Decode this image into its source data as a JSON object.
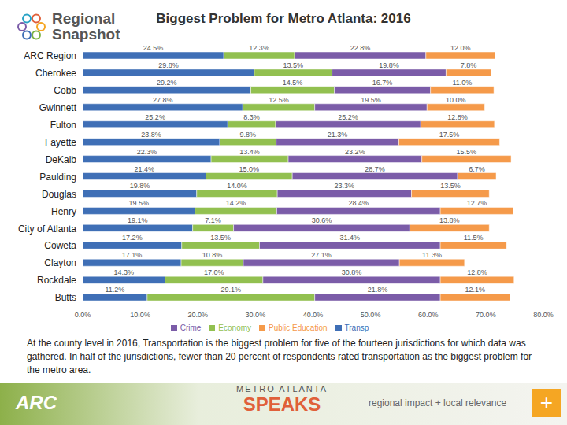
{
  "chart_data": {
    "type": "bar",
    "title": "Biggest Problem for Metro Atlanta: 2016",
    "orientation": "horizontal",
    "stacked": true,
    "data_labels": true,
    "grid": false,
    "legend": "bottom",
    "categories": [
      "ARC Region",
      "Cherokee",
      "Cobb",
      "Gwinnett",
      "Fulton",
      "Fayette",
      "DeKalb",
      "Paulding",
      "Douglas",
      "Henry",
      "City of Atlanta",
      "Coweta",
      "Clayton",
      "Rockdale",
      "Butts"
    ],
    "series": [
      {
        "name": "Transp",
        "color": "#3f6fb6",
        "values": [
          24.5,
          29.8,
          29.2,
          27.8,
          25.2,
          23.8,
          22.3,
          21.4,
          19.8,
          19.5,
          19.1,
          17.2,
          17.1,
          14.3,
          11.2
        ],
        "value_labels": [
          "24.5%",
          "29.8%",
          "29.2%",
          "27.8%",
          "25.2%",
          "23.8%",
          "22.3%",
          "21.4%",
          "19.8%",
          "19.5%",
          "19.1%",
          "17.2%",
          "17.1%",
          "14.3%",
          "11.2%"
        ]
      },
      {
        "name": "Economy",
        "color": "#92c050",
        "values": [
          12.3,
          13.5,
          14.5,
          12.5,
          8.3,
          9.8,
          13.4,
          15.0,
          14.0,
          14.2,
          7.1,
          13.5,
          10.8,
          17.0,
          29.1
        ],
        "value_labels": [
          "12.3%",
          "13.5%",
          "14.5%",
          "12.5%",
          "8.3%",
          "9.8%",
          "13.4%",
          "15.0%",
          "14.0%",
          "14.2%",
          "7.1%",
          "13.5%",
          "10.8%",
          "17.0%",
          "29.1%"
        ]
      },
      {
        "name": "Crime",
        "color": "#7b5ca8",
        "values": [
          22.8,
          19.8,
          16.7,
          19.5,
          25.2,
          21.3,
          23.2,
          28.7,
          23.3,
          28.4,
          30.6,
          31.4,
          27.1,
          30.8,
          21.8
        ],
        "value_labels": [
          "22.8%",
          "19.8%",
          "16.7%",
          "19.5%",
          "25.2%",
          "21.3%",
          "23.2%",
          "28.7%",
          "23.3%",
          "28.4%",
          "30.6%",
          "31.4%",
          "27.1%",
          "30.8%",
          "21.8%"
        ]
      },
      {
        "name": "Public Education",
        "color": "#f59a4a",
        "values": [
          12.0,
          7.8,
          11.0,
          10.0,
          12.8,
          17.5,
          15.5,
          6.7,
          13.5,
          12.7,
          13.8,
          11.5,
          11.3,
          12.8,
          12.1
        ],
        "value_labels": [
          "12.0%",
          "7.8%",
          "11.0%",
          "10.0%",
          "12.8%",
          "17.5%",
          "15.5%",
          "6.7%",
          "13.5%",
          "12.7%",
          "13.8%",
          "11.5%",
          "11.3%",
          "12.8%",
          "12.1%"
        ]
      }
    ],
    "xlim": [
      0,
      80
    ],
    "xticks": [
      {
        "value": 0,
        "label": "0.0%"
      },
      {
        "value": 10,
        "label": "10.0%"
      },
      {
        "value": 20,
        "label": "20.0%"
      },
      {
        "value": 30,
        "label": "30.0%"
      },
      {
        "value": 40,
        "label": "40.0%"
      },
      {
        "value": 50,
        "label": "50.0%"
      },
      {
        "value": 60,
        "label": "60.0%"
      },
      {
        "value": 70,
        "label": "70.0%"
      },
      {
        "value": 80,
        "label": "80.0%"
      }
    ]
  },
  "header": {
    "logo": [
      "Regional",
      "Snapshot"
    ]
  },
  "caption": "At the county level in 2016, Transportation is the biggest problem for five of the fourteen jurisdictions for which data was gathered. In half of the jurisdictions, fewer than 20 percent of respondents rated transportation as the biggest problem for the metro area.",
  "footer": {
    "left": "ARC",
    "center": [
      "METRO ATLANTA",
      "SPEAKS"
    ],
    "right": "regional impact + local relevance",
    "button": "+"
  }
}
